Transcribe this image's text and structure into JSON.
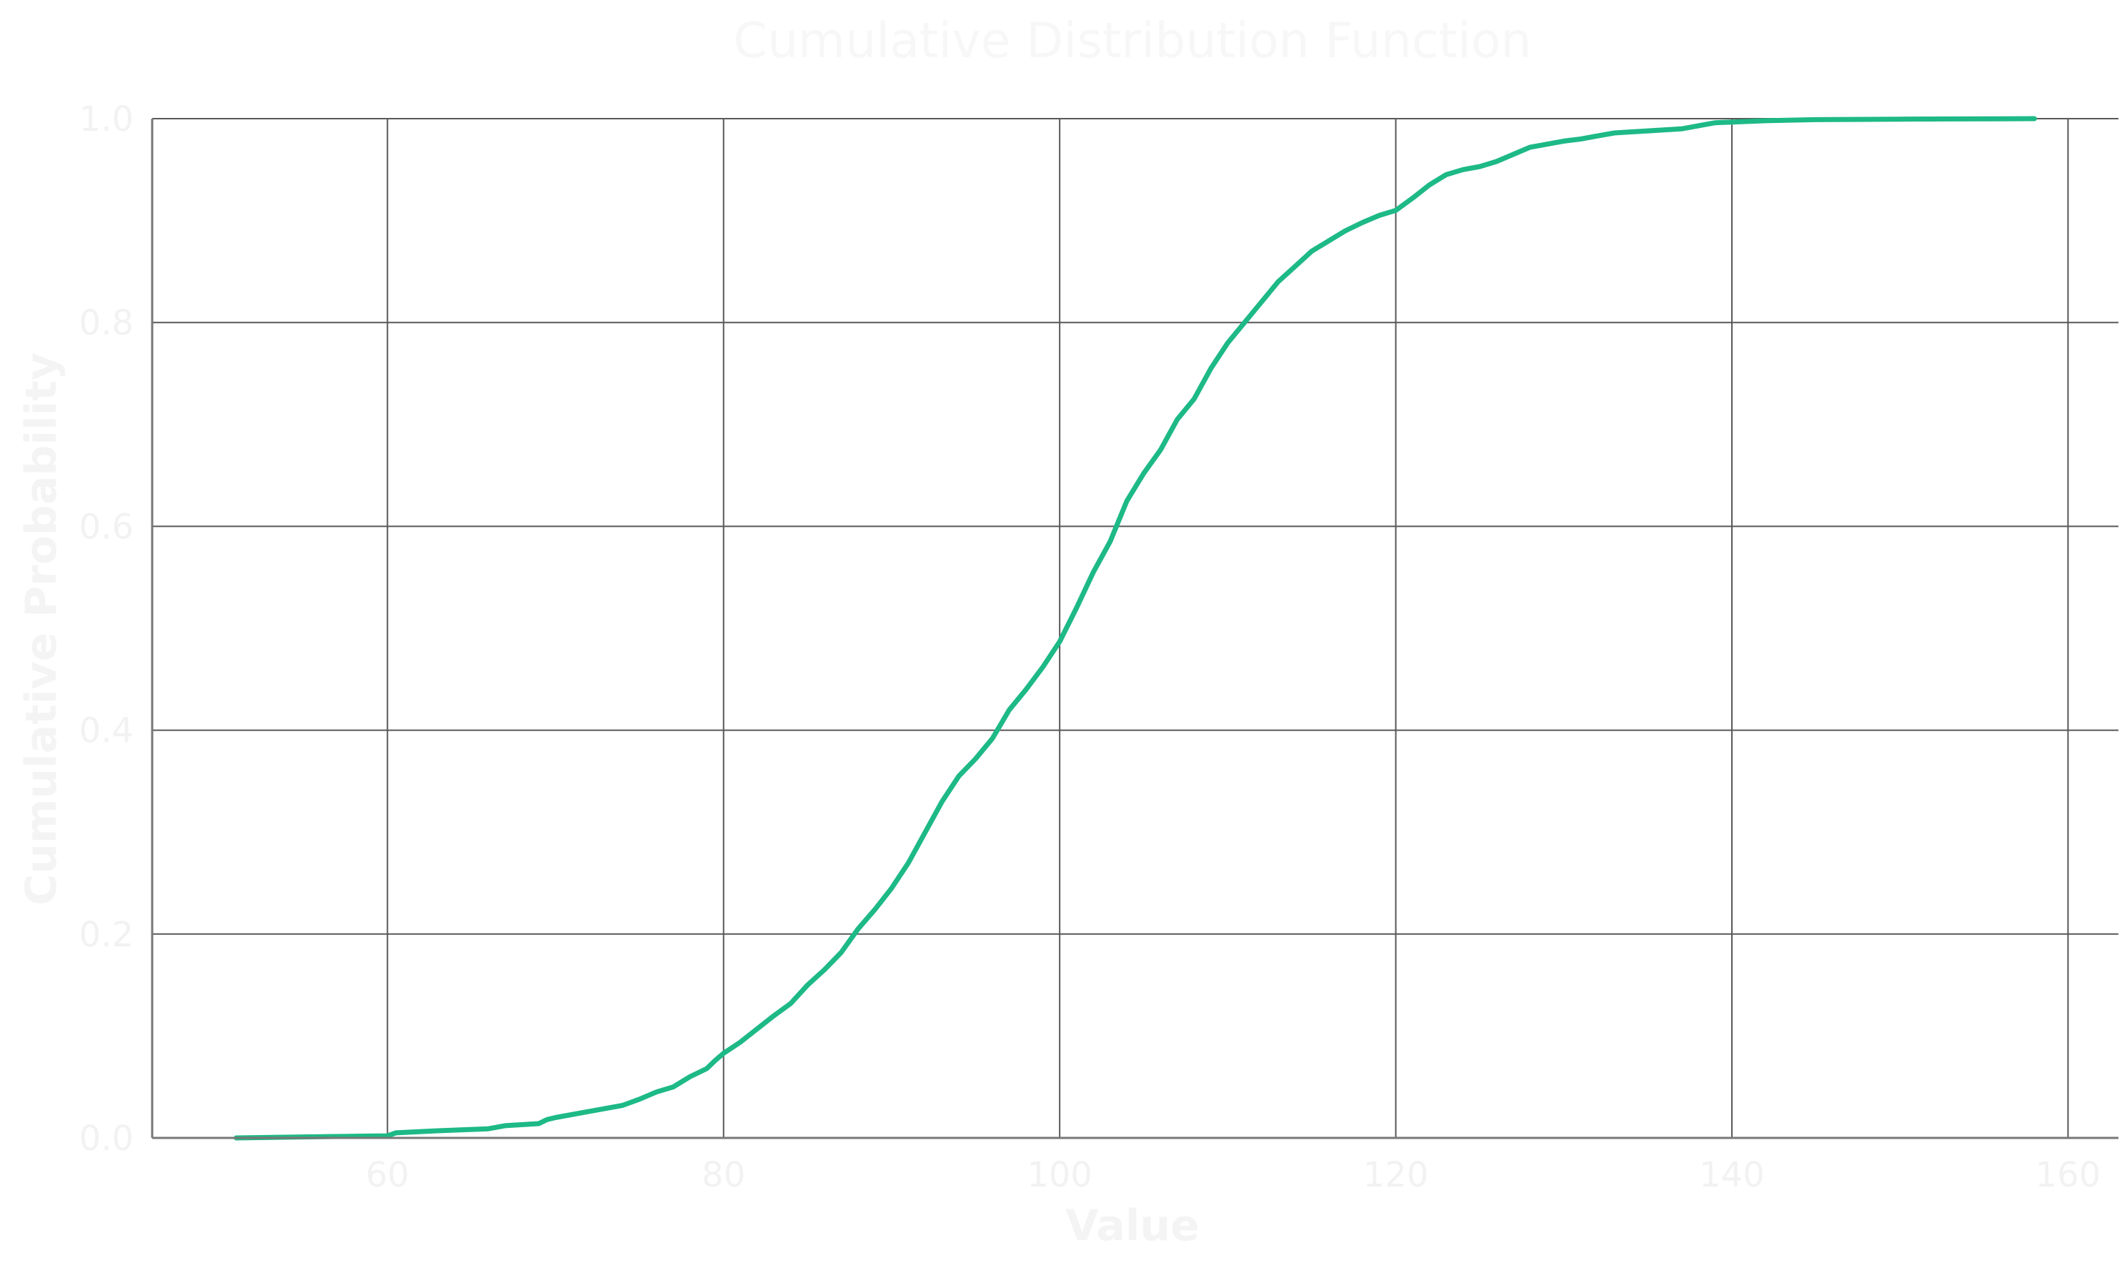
{
  "chart_data": {
    "type": "line",
    "title": "Cumulative Distribution Function",
    "xlabel": "Value",
    "ylabel": "Cumulative Probability",
    "xlim": [
      46,
      163
    ],
    "ylim": [
      0,
      1
    ],
    "xticks": [
      60,
      80,
      100,
      120,
      140,
      160
    ],
    "yticks": [
      0.0,
      0.2,
      0.4,
      0.6,
      0.8,
      1.0
    ],
    "xtick_labels": [
      "60",
      "80",
      "100",
      "120",
      "140",
      "160"
    ],
    "ytick_labels": [
      "0.0",
      "0.2",
      "0.4",
      "0.6",
      "0.8",
      "1.0"
    ],
    "grid": true,
    "line_color": "#1db986",
    "series": [
      {
        "x": [
          51,
          55,
          60,
          60.5,
          63,
          66,
          67,
          69,
          69.5,
          70,
          72,
          74,
          75,
          76,
          77,
          78,
          79,
          79.5,
          80,
          81,
          82,
          83,
          84,
          85,
          86,
          87,
          88,
          89,
          90,
          91,
          92,
          93,
          94,
          95,
          96,
          97,
          98,
          99,
          100,
          101,
          102,
          103,
          104,
          105,
          106,
          107,
          108,
          109,
          110,
          111,
          112,
          113,
          114,
          115,
          116,
          117,
          118,
          119,
          120,
          121,
          122,
          123,
          124,
          125,
          126,
          127,
          128,
          129,
          130,
          131,
          132,
          133,
          135,
          137,
          139,
          142,
          145,
          150,
          155,
          158
        ],
        "y": [
          0.0,
          0.001,
          0.002,
          0.005,
          0.007,
          0.009,
          0.012,
          0.014,
          0.018,
          0.02,
          0.026,
          0.032,
          0.038,
          0.045,
          0.05,
          0.06,
          0.068,
          0.076,
          0.083,
          0.094,
          0.107,
          0.12,
          0.132,
          0.15,
          0.165,
          0.182,
          0.205,
          0.224,
          0.245,
          0.27,
          0.3,
          0.33,
          0.355,
          0.372,
          0.392,
          0.42,
          0.44,
          0.462,
          0.487,
          0.52,
          0.555,
          0.585,
          0.625,
          0.652,
          0.675,
          0.705,
          0.725,
          0.755,
          0.78,
          0.8,
          0.82,
          0.84,
          0.855,
          0.87,
          0.88,
          0.89,
          0.898,
          0.905,
          0.91,
          0.922,
          0.935,
          0.945,
          0.95,
          0.953,
          0.958,
          0.965,
          0.972,
          0.975,
          0.978,
          0.98,
          0.983,
          0.986,
          0.988,
          0.99,
          0.996,
          0.998,
          0.999,
          0.9995,
          0.9998,
          1.0
        ]
      }
    ]
  }
}
